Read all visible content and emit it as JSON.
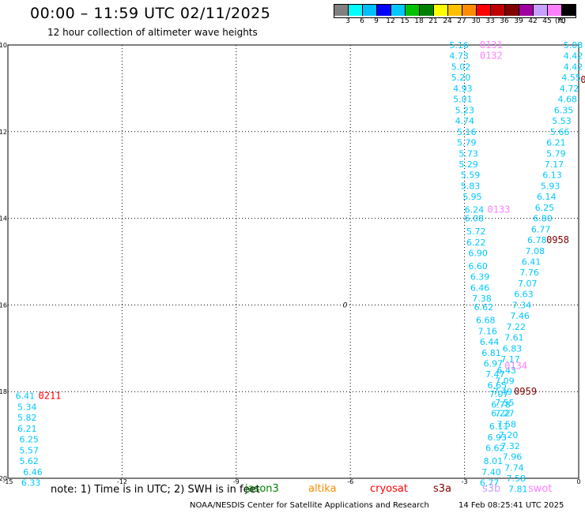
{
  "header": {
    "title": "00:00 – 11:59 UTC 02/11/2025",
    "subtitle": "12 hour collection of altimeter wave heights"
  },
  "color_scale": {
    "colors": [
      "#808080",
      "#00ffff",
      "#00bfff",
      "#0000ff",
      "#00c8ff",
      "#00c000",
      "#008000",
      "#ffff00",
      "#ffc000",
      "#ff8c00",
      "#ff0000",
      "#c00000",
      "#800000",
      "#a000a0",
      "#c8a0ff",
      "#ff80ff",
      "#000000"
    ],
    "labels": [
      "3",
      "6",
      "9",
      "12",
      "15",
      "18",
      "21",
      "24",
      "27",
      "30",
      "33",
      "36",
      "39",
      "42",
      "45",
      "70"
    ],
    "unit": "(ft)"
  },
  "map": {
    "x_ticks": [
      "-15",
      "-12",
      "-9",
      "-6",
      "-3",
      "0"
    ],
    "y_ticks": [
      "-10",
      "-12",
      "-14",
      "-16",
      "-18",
      "-20"
    ],
    "marker_label": "0",
    "passes": [
      {
        "label": "0131",
        "color": "#ff80ff",
        "lon": -2.6,
        "lat": -10.0
      },
      {
        "label": "0132",
        "color": "#ff80ff",
        "lon": -2.6,
        "lat": -10.25
      },
      {
        "label": "0133",
        "color": "#ff80ff",
        "lon": -2.4,
        "lat": -13.8
      },
      {
        "label": "0134",
        "color": "#ff80ff",
        "lon": -1.95,
        "lat": -17.4
      },
      {
        "label": "0958",
        "color": "#800000",
        "lon": -0.85,
        "lat": -14.5
      },
      {
        "label": "0959",
        "color": "#800000",
        "lon": -1.7,
        "lat": -18.0
      },
      {
        "label": "0211",
        "color": "#ff0000",
        "lon": -14.2,
        "lat": -18.1
      },
      {
        "label": "0",
        "color": "#800000",
        "lon": 0.05,
        "lat": -10.8
      }
    ],
    "tracks": [
      {
        "name": "track-west",
        "color": "#00c8ff",
        "points": [
          {
            "lon": -14.8,
            "lat": -18.1,
            "v": "6.41"
          },
          {
            "lon": -14.75,
            "lat": -18.35,
            "v": "5.34"
          },
          {
            "lon": -14.75,
            "lat": -18.6,
            "v": "5.82"
          },
          {
            "lon": -14.75,
            "lat": -18.85,
            "v": "6.21"
          },
          {
            "lon": -14.7,
            "lat": -19.1,
            "v": "6.25"
          },
          {
            "lon": -14.7,
            "lat": -19.35,
            "v": "5.57"
          },
          {
            "lon": -14.7,
            "lat": -19.6,
            "v": "5.62"
          },
          {
            "lon": -14.6,
            "lat": -19.85,
            "v": "6.46"
          },
          {
            "lon": -14.65,
            "lat": -20.1,
            "v": "6.33"
          }
        ]
      },
      {
        "name": "track-central",
        "color": "#00c8ff",
        "points": [
          {
            "lon": -3.4,
            "lat": -10.0,
            "v": "5.16"
          },
          {
            "lon": -3.4,
            "lat": -10.25,
            "v": "4.73"
          },
          {
            "lon": -3.35,
            "lat": -10.5,
            "v": "5.02"
          },
          {
            "lon": -3.35,
            "lat": -10.75,
            "v": "5.20"
          },
          {
            "lon": -3.3,
            "lat": -11.0,
            "v": "4.93"
          },
          {
            "lon": -3.3,
            "lat": -11.25,
            "v": "5.01"
          },
          {
            "lon": -3.25,
            "lat": -11.5,
            "v": "5.23"
          },
          {
            "lon": -3.25,
            "lat": -11.75,
            "v": "4.74"
          },
          {
            "lon": -3.2,
            "lat": -12.0,
            "v": "5.16"
          },
          {
            "lon": -3.2,
            "lat": -12.25,
            "v": "5.79"
          },
          {
            "lon": -3.15,
            "lat": -12.5,
            "v": "5.73"
          },
          {
            "lon": -3.15,
            "lat": -12.75,
            "v": "5.29"
          },
          {
            "lon": -3.1,
            "lat": -13.0,
            "v": "5.59"
          },
          {
            "lon": -3.1,
            "lat": -13.25,
            "v": "5.83"
          },
          {
            "lon": -3.05,
            "lat": -13.5,
            "v": "5.95"
          },
          {
            "lon": -3.0,
            "lat": -13.8,
            "v": "6.24"
          },
          {
            "lon": -3.0,
            "lat": -14.0,
            "v": "6.08"
          },
          {
            "lon": -2.95,
            "lat": -14.3,
            "v": "5.72"
          },
          {
            "lon": -2.95,
            "lat": -14.55,
            "v": "6.22"
          },
          {
            "lon": -2.9,
            "lat": -14.8,
            "v": "6.90"
          },
          {
            "lon": -2.9,
            "lat": -15.1,
            "v": "6.60"
          },
          {
            "lon": -2.85,
            "lat": -15.35,
            "v": "6.39"
          },
          {
            "lon": -2.85,
            "lat": -15.6,
            "v": "6.46"
          },
          {
            "lon": -2.8,
            "lat": -15.85,
            "v": "7.38"
          },
          {
            "lon": -2.75,
            "lat": -16.05,
            "v": "6.62"
          },
          {
            "lon": -2.7,
            "lat": -16.35,
            "v": "6.68"
          },
          {
            "lon": -2.65,
            "lat": -16.6,
            "v": "7.16"
          },
          {
            "lon": -2.6,
            "lat": -16.85,
            "v": "6.44"
          },
          {
            "lon": -2.55,
            "lat": -17.1,
            "v": "6.81"
          },
          {
            "lon": -2.5,
            "lat": -17.35,
            "v": "6.97"
          },
          {
            "lon": -2.45,
            "lat": -17.6,
            "v": "7.47"
          },
          {
            "lon": -2.4,
            "lat": -17.85,
            "v": "6.65"
          },
          {
            "lon": -2.35,
            "lat": -18.05,
            "v": "7.07"
          },
          {
            "lon": -2.3,
            "lat": -18.3,
            "v": "6.78"
          },
          {
            "lon": -2.3,
            "lat": -18.5,
            "v": "6.22"
          },
          {
            "lon": -2.35,
            "lat": -18.8,
            "v": "6.11"
          },
          {
            "lon": -2.4,
            "lat": -19.05,
            "v": "6.93"
          },
          {
            "lon": -2.45,
            "lat": -19.3,
            "v": "6.62"
          },
          {
            "lon": -2.5,
            "lat": -19.6,
            "v": "8.01"
          },
          {
            "lon": -2.55,
            "lat": -19.85,
            "v": "7.40"
          },
          {
            "lon": -2.6,
            "lat": -20.1,
            "v": "6.77"
          }
        ]
      },
      {
        "name": "track-east",
        "color": "#00c8ff",
        "points": [
          {
            "lon": -0.4,
            "lat": -10.0,
            "v": "5.08"
          },
          {
            "lon": -0.4,
            "lat": -10.25,
            "v": "4.42"
          },
          {
            "lon": -0.4,
            "lat": -10.5,
            "v": "4.42"
          },
          {
            "lon": -0.45,
            "lat": -10.75,
            "v": "4.55"
          },
          {
            "lon": -0.5,
            "lat": -11.0,
            "v": "4.72"
          },
          {
            "lon": -0.55,
            "lat": -11.25,
            "v": "4.68"
          },
          {
            "lon": -0.65,
            "lat": -11.5,
            "v": "6.35"
          },
          {
            "lon": -0.7,
            "lat": -11.75,
            "v": "5.53"
          },
          {
            "lon": -0.75,
            "lat": -12.0,
            "v": "5.66"
          },
          {
            "lon": -0.85,
            "lat": -12.25,
            "v": "6.21"
          },
          {
            "lon": -0.85,
            "lat": -12.5,
            "v": "5.79"
          },
          {
            "lon": -0.9,
            "lat": -12.75,
            "v": "7.17"
          },
          {
            "lon": -0.95,
            "lat": -13.0,
            "v": "6.13"
          },
          {
            "lon": -1.0,
            "lat": -13.25,
            "v": "5.93"
          },
          {
            "lon": -1.1,
            "lat": -13.5,
            "v": "6.14"
          },
          {
            "lon": -1.15,
            "lat": -13.75,
            "v": "6.25"
          },
          {
            "lon": -1.2,
            "lat": -14.0,
            "v": "6.80"
          },
          {
            "lon": -1.25,
            "lat": -14.25,
            "v": "6.77"
          },
          {
            "lon": -1.35,
            "lat": -14.5,
            "v": "6.78"
          },
          {
            "lon": -1.4,
            "lat": -14.75,
            "v": "7.08"
          },
          {
            "lon": -1.5,
            "lat": -15.0,
            "v": "6.41"
          },
          {
            "lon": -1.55,
            "lat": -15.25,
            "v": "7.76"
          },
          {
            "lon": -1.6,
            "lat": -15.5,
            "v": "7.07"
          },
          {
            "lon": -1.7,
            "lat": -15.75,
            "v": "6.63"
          },
          {
            "lon": -1.75,
            "lat": -16.0,
            "v": "7.34"
          },
          {
            "lon": -1.8,
            "lat": -16.25,
            "v": "7.46"
          },
          {
            "lon": -1.9,
            "lat": -16.5,
            "v": "7.22"
          },
          {
            "lon": -1.95,
            "lat": -16.75,
            "v": "7.61"
          },
          {
            "lon": -2.0,
            "lat": -17.0,
            "v": "6.83"
          },
          {
            "lon": -2.05,
            "lat": -17.25,
            "v": "7.17"
          },
          {
            "lon": -2.15,
            "lat": -17.5,
            "v": "6.43"
          },
          {
            "lon": -2.2,
            "lat": -17.75,
            "v": "7.09"
          },
          {
            "lon": -2.25,
            "lat": -18.0,
            "v": "7.49"
          },
          {
            "lon": -2.2,
            "lat": -18.25,
            "v": "7.55"
          },
          {
            "lon": -2.2,
            "lat": -18.5,
            "v": "7.27"
          },
          {
            "lon": -2.15,
            "lat": -18.75,
            "v": "7.58"
          },
          {
            "lon": -2.1,
            "lat": -19.0,
            "v": "7.20"
          },
          {
            "lon": -2.05,
            "lat": -19.25,
            "v": "7.32"
          },
          {
            "lon": -2.0,
            "lat": -19.5,
            "v": "7.96"
          },
          {
            "lon": -1.95,
            "lat": -19.75,
            "v": "7.74"
          },
          {
            "lon": -1.9,
            "lat": -20.0,
            "v": "7.58"
          },
          {
            "lon": -1.85,
            "lat": -20.25,
            "v": "7.81"
          }
        ]
      }
    ]
  },
  "footer": {
    "note": "note: 1) Time is in UTC; 2) SWH is in feet",
    "legend": [
      {
        "label": "jason3",
        "color": "#008000"
      },
      {
        "label": "altika",
        "color": "#ff8c00"
      },
      {
        "label": "cryosat",
        "color": "#ff0000"
      },
      {
        "label": "s3a",
        "color": "#800000"
      },
      {
        "label": "s3b",
        "color": "#c8a0ff"
      },
      {
        "label": "swot",
        "color": "#ff80ff"
      }
    ],
    "credit": "NOAA/NESDIS Center for Satellite Applications and Research",
    "timestamp": "14 Feb 08:25:41 UTC 2025"
  }
}
